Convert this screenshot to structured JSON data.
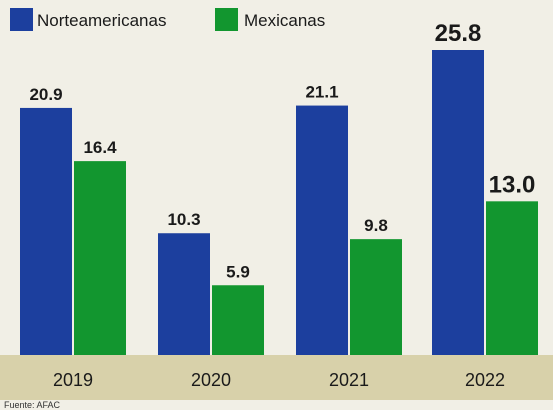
{
  "chart_data": {
    "type": "bar",
    "title": "",
    "xlabel": "",
    "ylabel": "",
    "categories": [
      "2019",
      "2020",
      "2021",
      "2022"
    ],
    "series": [
      {
        "name": "Norteamericanas",
        "color": "#1c3f9e",
        "values": [
          20.9,
          10.3,
          21.1,
          25.8
        ],
        "labels": [
          "20.9",
          "10.3",
          "21.1",
          "25.8"
        ]
      },
      {
        "name": "Mexicanas",
        "color": "#12962f",
        "values": [
          16.4,
          5.9,
          9.8,
          13.0
        ],
        "labels": [
          "16.4",
          "5.9",
          "9.8",
          "13.0"
        ]
      }
    ],
    "ylim": [
      0,
      25.8
    ],
    "grid": false,
    "legend_position": "top-left",
    "emphasized_category": "2022"
  },
  "source": "Fuente: AFAC",
  "colors": {
    "background": "#f1efe6",
    "axis_band": "#d8d1aa"
  }
}
